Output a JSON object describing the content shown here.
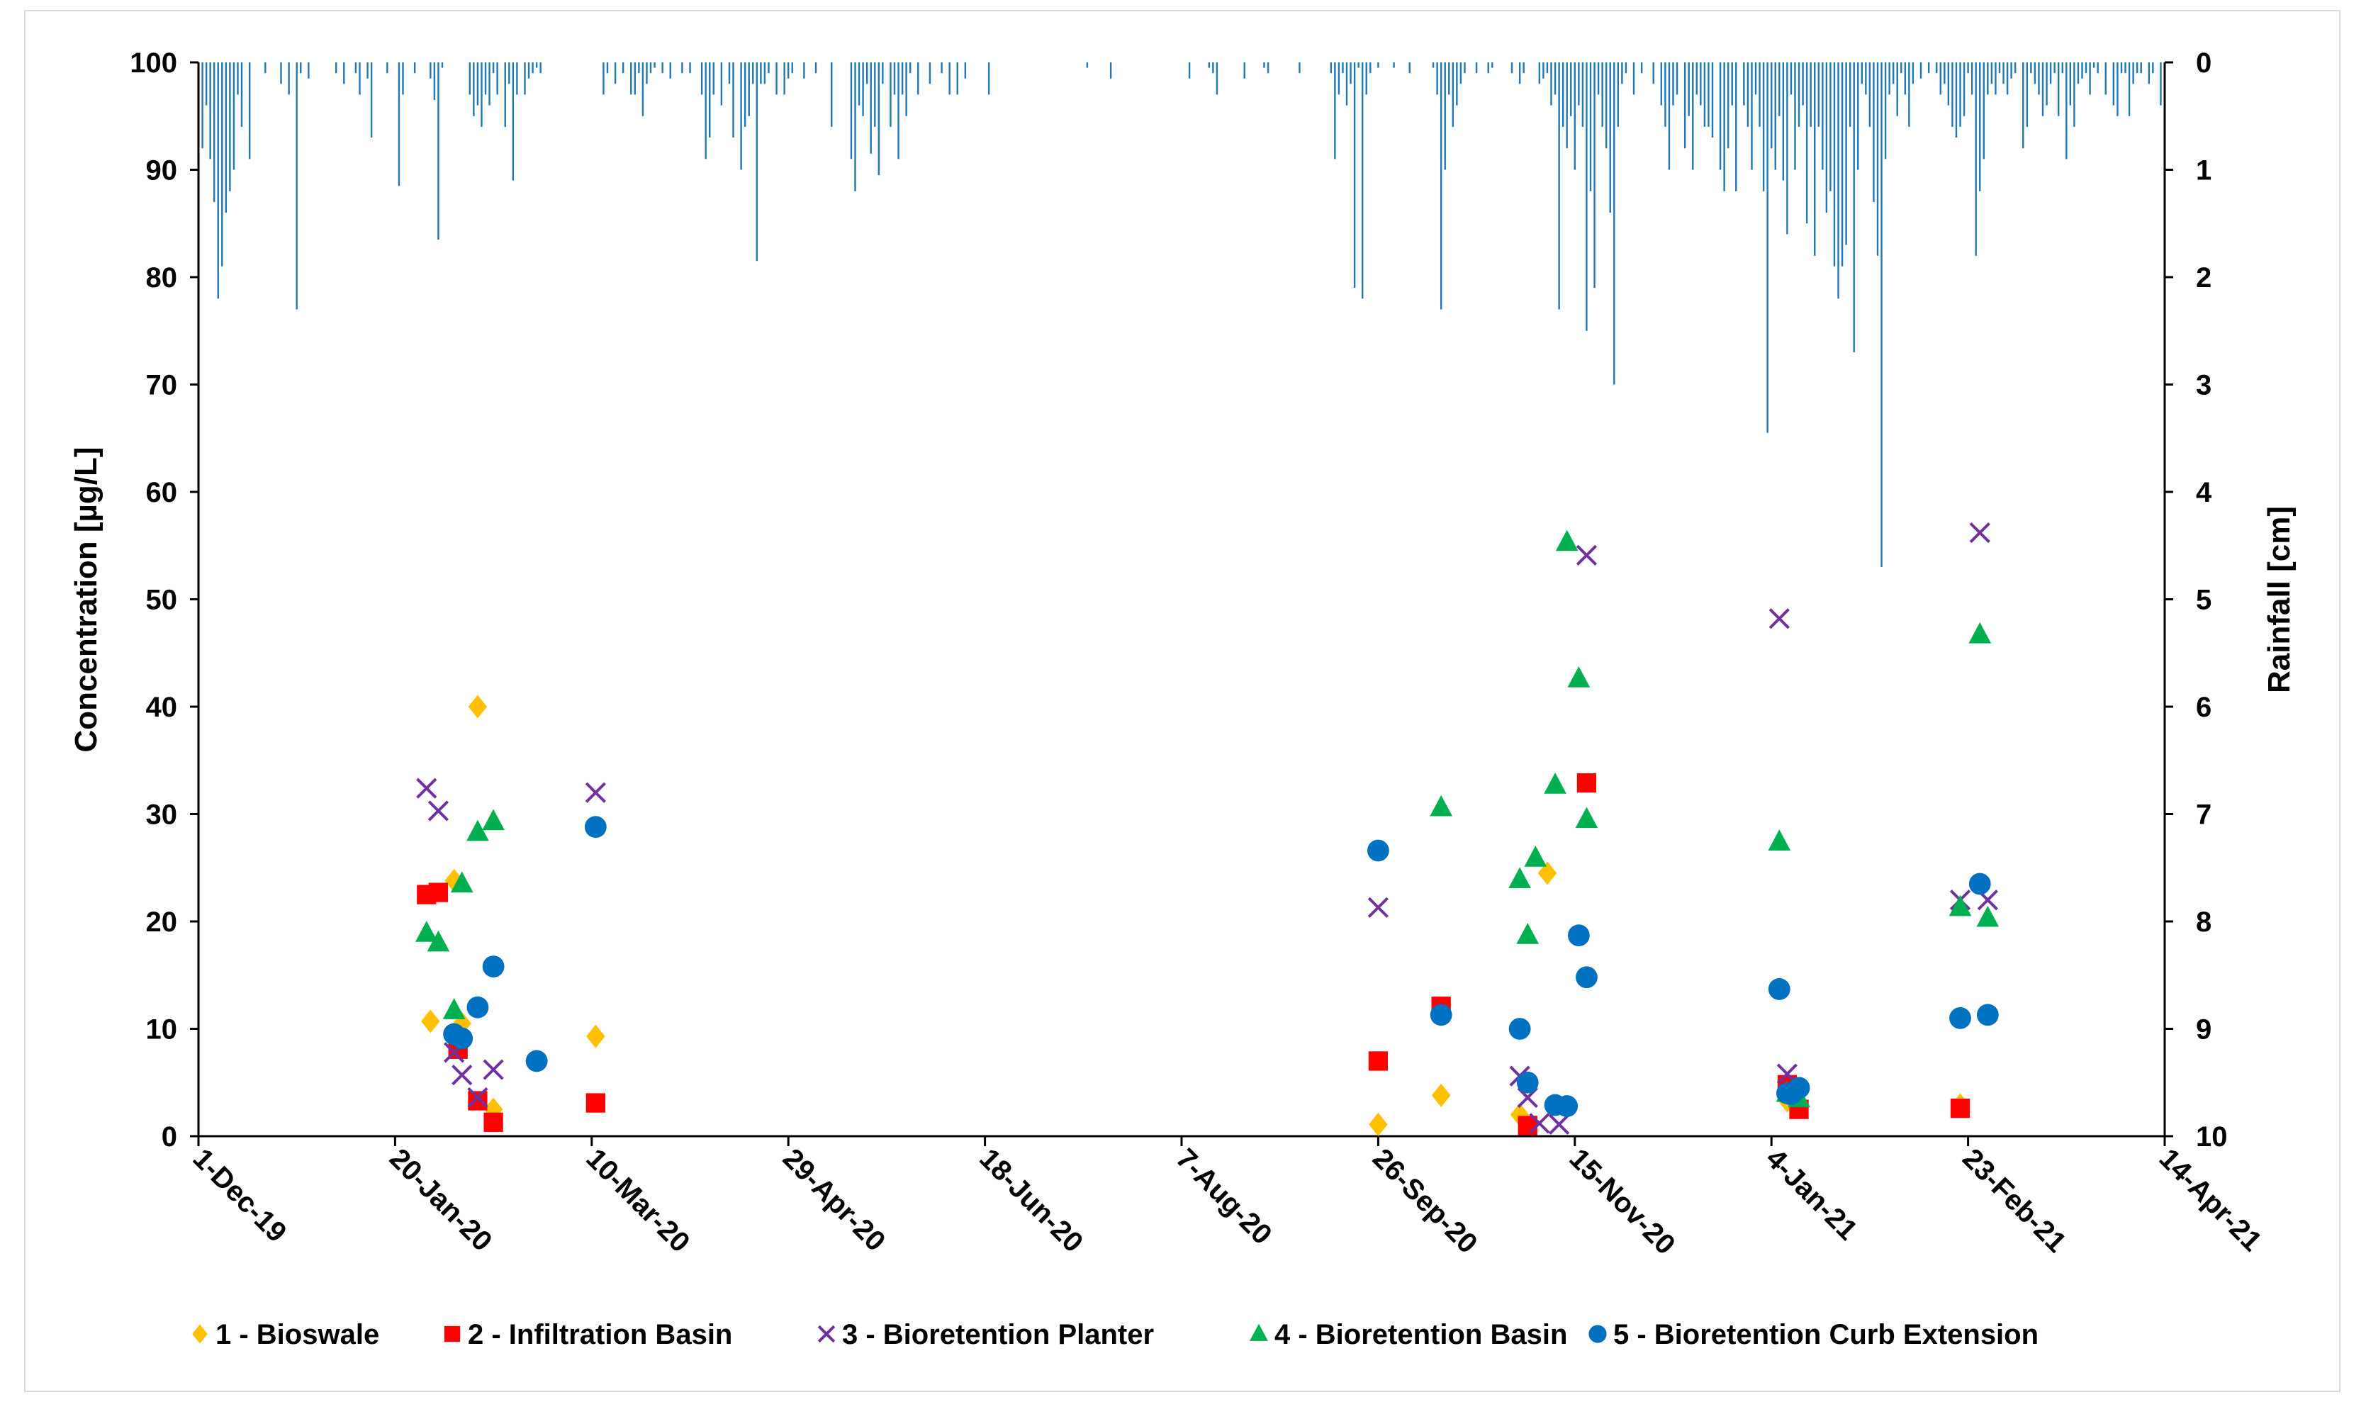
{
  "chart_data": {
    "type": "scatter",
    "title": "",
    "xlabel": "",
    "ylabel": "Concentration [µg/L]",
    "y2label": "Rainfall [cm]",
    "ylim": [
      0,
      100
    ],
    "y2lim": [
      0,
      10
    ],
    "y2_inverted": true,
    "yticks": [
      "0",
      "10",
      "20",
      "30",
      "40",
      "50",
      "60",
      "70",
      "80",
      "90",
      "100"
    ],
    "y2ticks": [
      "0",
      "1",
      "2",
      "3",
      "4",
      "5",
      "6",
      "7",
      "8",
      "9",
      "10"
    ],
    "xlim_days": [
      0,
      500
    ],
    "xticks": [
      {
        "day": 0,
        "label": "1-Dec-19"
      },
      {
        "day": 50,
        "label": "20-Jan-20"
      },
      {
        "day": 100,
        "label": "10-Mar-20"
      },
      {
        "day": 150,
        "label": "29-Apr-20"
      },
      {
        "day": 200,
        "label": "18-Jun-20"
      },
      {
        "day": 250,
        "label": "7-Aug-20"
      },
      {
        "day": 300,
        "label": "26-Sep-20"
      },
      {
        "day": 350,
        "label": "15-Nov-20"
      },
      {
        "day": 400,
        "label": "4-Jan-21"
      },
      {
        "day": 450,
        "label": "23-Feb-21"
      },
      {
        "day": 500,
        "label": "14-Apr-21"
      }
    ],
    "legend_position": "bottom",
    "series": [
      {
        "name": "1 - Bioswale",
        "marker": "diamond",
        "color": "#FFC000",
        "points": [
          [
            59,
            10.7
          ],
          [
            65,
            23.8
          ],
          [
            67,
            10.5
          ],
          [
            71,
            40
          ],
          [
            75,
            2.5
          ],
          [
            101,
            9.3
          ],
          [
            300,
            1.1
          ],
          [
            316,
            3.8
          ],
          [
            336,
            2
          ],
          [
            343,
            24.5
          ],
          [
            404,
            3.3
          ],
          [
            448,
            2.9
          ]
        ]
      },
      {
        "name": "2 - Infiltration Basin",
        "marker": "square",
        "color": "#FF0000",
        "points": [
          [
            58,
            22.5
          ],
          [
            61,
            22.7
          ],
          [
            66,
            8.1
          ],
          [
            71,
            3.3
          ],
          [
            75,
            1.3
          ],
          [
            101,
            3.1
          ],
          [
            300,
            7
          ],
          [
            316,
            12.1
          ],
          [
            338,
            1
          ],
          [
            353,
            32.9
          ],
          [
            404,
            4.8
          ],
          [
            407,
            2.5
          ],
          [
            448,
            2.6
          ]
        ]
      },
      {
        "name": "3 - Bioretention Planter",
        "marker": "x",
        "color": "#7030A0",
        "points": [
          [
            58,
            32.4
          ],
          [
            61,
            30.3
          ],
          [
            65,
            7.8
          ],
          [
            67,
            5.7
          ],
          [
            71,
            3.6
          ],
          [
            75,
            6.2
          ],
          [
            101,
            32
          ],
          [
            300,
            21.3
          ],
          [
            336,
            5.6
          ],
          [
            338,
            3.6
          ],
          [
            341,
            1.2
          ],
          [
            346,
            1.1
          ],
          [
            353,
            54.1
          ],
          [
            402,
            48.2
          ],
          [
            404,
            5.8
          ],
          [
            448,
            22
          ],
          [
            455,
            22
          ],
          [
            453,
            56.2
          ]
        ]
      },
      {
        "name": "4 - Bioretention Basin",
        "marker": "triangle",
        "color": "#00B050",
        "points": [
          [
            58,
            18.9
          ],
          [
            61,
            18
          ],
          [
            65,
            11.7
          ],
          [
            67,
            23.5
          ],
          [
            71,
            28.3
          ],
          [
            75,
            29.3
          ],
          [
            316,
            30.6
          ],
          [
            336,
            23.9
          ],
          [
            338,
            18.7
          ],
          [
            340,
            25.9
          ],
          [
            345,
            32.7
          ],
          [
            348,
            55.3
          ],
          [
            351,
            42.6
          ],
          [
            353,
            29.5
          ],
          [
            402,
            27.4
          ],
          [
            404,
            4
          ],
          [
            407,
            3.5
          ],
          [
            448,
            21.3
          ],
          [
            453,
            46.7
          ],
          [
            455,
            20.3
          ]
        ]
      },
      {
        "name": "5 - Bioretention Curb Extension",
        "marker": "circle",
        "color": "#0070C0",
        "points": [
          [
            65,
            9.5
          ],
          [
            67,
            9.1
          ],
          [
            71,
            12
          ],
          [
            75,
            15.8
          ],
          [
            86,
            7
          ],
          [
            101,
            28.8
          ],
          [
            300,
            26.6
          ],
          [
            316,
            11.3
          ],
          [
            336,
            10
          ],
          [
            338,
            5
          ],
          [
            345,
            2.9
          ],
          [
            348,
            2.8
          ],
          [
            351,
            18.7
          ],
          [
            353,
            14.8
          ],
          [
            402,
            13.7
          ],
          [
            404,
            4
          ],
          [
            405,
            3.9
          ],
          [
            407,
            4.5
          ],
          [
            448,
            11
          ],
          [
            453,
            23.5
          ],
          [
            455,
            11.3
          ]
        ]
      }
    ],
    "rainfall_cm": [
      [
        0,
        1.2
      ],
      [
        1,
        0.8
      ],
      [
        2,
        0.4
      ],
      [
        3,
        0.9
      ],
      [
        4,
        1.3
      ],
      [
        5,
        2.2
      ],
      [
        6,
        1.9
      ],
      [
        7,
        1.4
      ],
      [
        8,
        1.2
      ],
      [
        9,
        1.0
      ],
      [
        10,
        0.3
      ],
      [
        11,
        0.6
      ],
      [
        13,
        0.9
      ],
      [
        17,
        0.1
      ],
      [
        21,
        0.2
      ],
      [
        23,
        0.3
      ],
      [
        25,
        2.3
      ],
      [
        26,
        0.1
      ],
      [
        28,
        0.15
      ],
      [
        35,
        0.1
      ],
      [
        37,
        0.2
      ],
      [
        40,
        0.1
      ],
      [
        41,
        0.3
      ],
      [
        43,
        0.15
      ],
      [
        44,
        0.7
      ],
      [
        48,
        0.1
      ],
      [
        51,
        1.15
      ],
      [
        52,
        0.3
      ],
      [
        55,
        0.1
      ],
      [
        59,
        0.15
      ],
      [
        60,
        0.35
      ],
      [
        61,
        1.65
      ],
      [
        62,
        0.05
      ],
      [
        69,
        0.3
      ],
      [
        70,
        0.5
      ],
      [
        71,
        0.4
      ],
      [
        72,
        0.6
      ],
      [
        73,
        0.3
      ],
      [
        74,
        0.4
      ],
      [
        75,
        0.1
      ],
      [
        76,
        0.3
      ],
      [
        78,
        0.6
      ],
      [
        79,
        0.2
      ],
      [
        80,
        1.1
      ],
      [
        81,
        0.3
      ],
      [
        83,
        0.3
      ],
      [
        84,
        0.15
      ],
      [
        85,
        0.1
      ],
      [
        86,
        0.05
      ],
      [
        87,
        0.1
      ],
      [
        103,
        0.3
      ],
      [
        104,
        0.1
      ],
      [
        106,
        0.2
      ],
      [
        108,
        0.1
      ],
      [
        110,
        0.3
      ],
      [
        111,
        0.3
      ],
      [
        112,
        0.1
      ],
      [
        113,
        0.5
      ],
      [
        114,
        0.2
      ],
      [
        115,
        0.1
      ],
      [
        116,
        0.05
      ],
      [
        118,
        0.1
      ],
      [
        120,
        0.15
      ],
      [
        123,
        0.1
      ],
      [
        125,
        0.1
      ],
      [
        128,
        0.3
      ],
      [
        129,
        0.9
      ],
      [
        130,
        0.7
      ],
      [
        131,
        0.3
      ],
      [
        133,
        0.4
      ],
      [
        135,
        0.2
      ],
      [
        136,
        0.7
      ],
      [
        138,
        1.0
      ],
      [
        139,
        0.6
      ],
      [
        140,
        0.5
      ],
      [
        141,
        0.2
      ],
      [
        142,
        1.85
      ],
      [
        143,
        0.2
      ],
      [
        144,
        0.2
      ],
      [
        145,
        0.1
      ],
      [
        147,
        0.3
      ],
      [
        149,
        0.3
      ],
      [
        150,
        0.15
      ],
      [
        151,
        0.1
      ],
      [
        154,
        0.15
      ],
      [
        157,
        0.1
      ],
      [
        161,
        0.6
      ],
      [
        166,
        0.9
      ],
      [
        167,
        1.2
      ],
      [
        168,
        0.4
      ],
      [
        169,
        0.5
      ],
      [
        170,
        0.2
      ],
      [
        171,
        0.85
      ],
      [
        172,
        0.6
      ],
      [
        173,
        1.05
      ],
      [
        174,
        0.2
      ],
      [
        176,
        0.6
      ],
      [
        177,
        0.3
      ],
      [
        178,
        0.9
      ],
      [
        179,
        0.3
      ],
      [
        180,
        0.5
      ],
      [
        181,
        0.1
      ],
      [
        183,
        0.3
      ],
      [
        186,
        0.2
      ],
      [
        189,
        0.1
      ],
      [
        191,
        0.3
      ],
      [
        193,
        0.3
      ],
      [
        195,
        0.15
      ],
      [
        201,
        0.3
      ],
      [
        226,
        0.05
      ],
      [
        232,
        0.15
      ],
      [
        252,
        0.15
      ],
      [
        257,
        0.05
      ],
      [
        258,
        0.1
      ],
      [
        259,
        0.3
      ],
      [
        266,
        0.15
      ],
      [
        271,
        0.05
      ],
      [
        272,
        0.1
      ],
      [
        280,
        0.1
      ],
      [
        288,
        0.1
      ],
      [
        289,
        0.9
      ],
      [
        290,
        0.3
      ],
      [
        291,
        0.1
      ],
      [
        292,
        0.4
      ],
      [
        293,
        0.2
      ],
      [
        294,
        2.1
      ],
      [
        295,
        0.05
      ],
      [
        296,
        2.2
      ],
      [
        297,
        0.3
      ],
      [
        298,
        0.1
      ],
      [
        300,
        0.05
      ],
      [
        304,
        0.05
      ],
      [
        308,
        0.1
      ],
      [
        314,
        0.05
      ],
      [
        315,
        0.3
      ],
      [
        316,
        2.3
      ],
      [
        317,
        1.0
      ],
      [
        318,
        0.3
      ],
      [
        319,
        0.6
      ],
      [
        320,
        0.4
      ],
      [
        321,
        0.2
      ],
      [
        322,
        0.1
      ],
      [
        325,
        0.1
      ],
      [
        328,
        0.1
      ],
      [
        329,
        0.05
      ],
      [
        334,
        0.1
      ],
      [
        336,
        0.2
      ],
      [
        337,
        0.1
      ],
      [
        341,
        0.2
      ],
      [
        342,
        0.15
      ],
      [
        343,
        0.1
      ],
      [
        344,
        0.4
      ],
      [
        345,
        0.3
      ],
      [
        346,
        2.3
      ],
      [
        347,
        0.6
      ],
      [
        348,
        0.8
      ],
      [
        349,
        0.5
      ],
      [
        350,
        1.0
      ],
      [
        351,
        0.4
      ],
      [
        352,
        0.6
      ],
      [
        353,
        2.5
      ],
      [
        354,
        1.2
      ],
      [
        355,
        2.1
      ],
      [
        356,
        0.3
      ],
      [
        357,
        0.6
      ],
      [
        358,
        0.8
      ],
      [
        359,
        1.4
      ],
      [
        360,
        3.0
      ],
      [
        361,
        0.6
      ],
      [
        362,
        0.2
      ],
      [
        363,
        0.1
      ],
      [
        365,
        0.3
      ],
      [
        367,
        0.1
      ],
      [
        370,
        0.2
      ],
      [
        372,
        0.4
      ],
      [
        373,
        0.6
      ],
      [
        374,
        1.0
      ],
      [
        375,
        0.4
      ],
      [
        376,
        0.3
      ],
      [
        378,
        0.8
      ],
      [
        379,
        0.5
      ],
      [
        380,
        1.0
      ],
      [
        381,
        0.3
      ],
      [
        382,
        0.4
      ],
      [
        383,
        0.6
      ],
      [
        384,
        0.6
      ],
      [
        385,
        0.7
      ],
      [
        387,
        1.0
      ],
      [
        388,
        1.2
      ],
      [
        389,
        0.8
      ],
      [
        390,
        0.4
      ],
      [
        391,
        1.2
      ],
      [
        393,
        0.4
      ],
      [
        394,
        0.6
      ],
      [
        395,
        1.0
      ],
      [
        396,
        0.3
      ],
      [
        397,
        0.6
      ],
      [
        398,
        1.2
      ],
      [
        399,
        3.45
      ],
      [
        400,
        0.8
      ],
      [
        401,
        1.0
      ],
      [
        402,
        0.5
      ],
      [
        403,
        1.1
      ],
      [
        404,
        1.6
      ],
      [
        405,
        0.3
      ],
      [
        406,
        1.0
      ],
      [
        407,
        0.6
      ],
      [
        408,
        0.4
      ],
      [
        409,
        1.5
      ],
      [
        410,
        0.6
      ],
      [
        411,
        1.8
      ],
      [
        412,
        0.6
      ],
      [
        413,
        1.0
      ],
      [
        414,
        1.4
      ],
      [
        415,
        1.2
      ],
      [
        416,
        1.9
      ],
      [
        417,
        2.2
      ],
      [
        418,
        1.9
      ],
      [
        419,
        1.7
      ],
      [
        420,
        0.6
      ],
      [
        421,
        2.7
      ],
      [
        422,
        1.0
      ],
      [
        423,
        0.2
      ],
      [
        424,
        0.3
      ],
      [
        425,
        0.6
      ],
      [
        426,
        1.3
      ],
      [
        427,
        1.8
      ],
      [
        428,
        4.7
      ],
      [
        429,
        0.9
      ],
      [
        430,
        0.3
      ],
      [
        431,
        0.2
      ],
      [
        432,
        0.5
      ],
      [
        433,
        0.1
      ],
      [
        434,
        0.3
      ],
      [
        435,
        0.6
      ],
      [
        436,
        0.2
      ],
      [
        438,
        0.15
      ],
      [
        440,
        0.1
      ],
      [
        442,
        0.1
      ],
      [
        443,
        0.3
      ],
      [
        444,
        0.2
      ],
      [
        445,
        0.4
      ],
      [
        446,
        0.6
      ],
      [
        447,
        0.7
      ],
      [
        448,
        0.6
      ],
      [
        449,
        0.5
      ],
      [
        450,
        0.1
      ],
      [
        451,
        0.3
      ],
      [
        452,
        1.8
      ],
      [
        453,
        1.2
      ],
      [
        454,
        0.9
      ],
      [
        455,
        0.3
      ],
      [
        456,
        0.2
      ],
      [
        457,
        0.3
      ],
      [
        458,
        0.1
      ],
      [
        459,
        0.2
      ],
      [
        460,
        0.3
      ],
      [
        461,
        0.15
      ],
      [
        462,
        0.1
      ],
      [
        464,
        0.8
      ],
      [
        465,
        0.6
      ],
      [
        466,
        0.1
      ],
      [
        467,
        0.2
      ],
      [
        468,
        0.3
      ],
      [
        469,
        0.5
      ],
      [
        470,
        0.4
      ],
      [
        471,
        0.2
      ],
      [
        472,
        0.1
      ],
      [
        473,
        0.5
      ],
      [
        474,
        0.1
      ],
      [
        475,
        0.9
      ],
      [
        476,
        0.4
      ],
      [
        477,
        0.6
      ],
      [
        478,
        0.2
      ],
      [
        479,
        0.15
      ],
      [
        480,
        0.1
      ],
      [
        481,
        0.3
      ],
      [
        482,
        0.05
      ],
      [
        483,
        0.1
      ],
      [
        485,
        0.3
      ],
      [
        487,
        0.4
      ],
      [
        488,
        0.5
      ],
      [
        489,
        0.1
      ],
      [
        490,
        0.1
      ],
      [
        491,
        0.5
      ],
      [
        492,
        0.2
      ],
      [
        493,
        0.1
      ],
      [
        494,
        0.1
      ],
      [
        496,
        0.2
      ],
      [
        497,
        0.1
      ],
      [
        499,
        0.4
      ]
    ]
  }
}
